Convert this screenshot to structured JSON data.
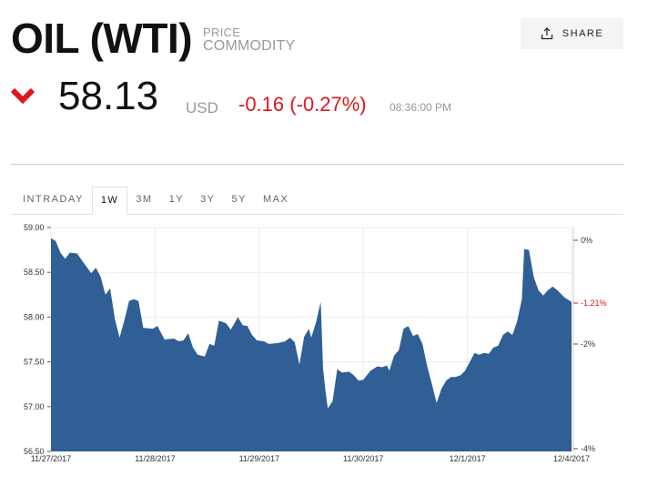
{
  "header": {
    "title": "OIL (WTI)",
    "meta_line1": "PRICE",
    "meta_line2": "COMMODITY",
    "share_label": "SHARE",
    "share_icon": "share-icon"
  },
  "quote": {
    "direction_icon": "chevron-down-icon",
    "price": "58.13",
    "currency": "USD",
    "change": "-0.16 (-0.27%)",
    "time": "08:36:00 PM",
    "down_color": "#e0161b"
  },
  "tabs": [
    {
      "label": "INTRADAY",
      "active": false
    },
    {
      "label": "1W",
      "active": true
    },
    {
      "label": "3M",
      "active": false
    },
    {
      "label": "1Y",
      "active": false
    },
    {
      "label": "3Y",
      "active": false
    },
    {
      "label": "5Y",
      "active": false
    },
    {
      "label": "MAX",
      "active": false
    }
  ],
  "chart_data": {
    "type": "area",
    "color": "#2f5f94",
    "ylim": [
      56.5,
      59.0
    ],
    "y_ticks": [
      "59.00",
      "58.50",
      "58.00",
      "57.50",
      "57.00",
      "56.50"
    ],
    "x_ticks": [
      "11/27/2017",
      "11/28/2017",
      "11/29/2017",
      "11/30/2017",
      "12/1/2017",
      "12/4/2017"
    ],
    "right_ticks": [
      "0%",
      "-2%",
      "-4%"
    ],
    "current_marker": "-1.21%",
    "grid": true,
    "series": [
      {
        "values": [
          [
            0.0,
            58.88
          ],
          [
            0.01,
            58.85
          ],
          [
            0.02,
            58.72
          ],
          [
            0.03,
            58.65
          ],
          [
            0.04,
            58.72
          ],
          [
            0.055,
            58.71
          ],
          [
            0.07,
            58.6
          ],
          [
            0.085,
            58.49
          ],
          [
            0.095,
            58.55
          ],
          [
            0.105,
            58.45
          ],
          [
            0.115,
            58.25
          ],
          [
            0.125,
            58.32
          ],
          [
            0.135,
            57.98
          ],
          [
            0.145,
            57.77
          ],
          [
            0.155,
            57.96
          ],
          [
            0.165,
            58.18
          ],
          [
            0.175,
            58.2
          ],
          [
            0.185,
            58.18
          ],
          [
            0.195,
            57.88
          ],
          [
            0.215,
            57.87
          ],
          [
            0.225,
            57.9
          ],
          [
            0.24,
            57.75
          ],
          [
            0.26,
            57.76
          ],
          [
            0.27,
            57.73
          ],
          [
            0.28,
            57.74
          ],
          [
            0.29,
            57.82
          ],
          [
            0.3,
            57.66
          ],
          [
            0.31,
            57.58
          ],
          [
            0.325,
            57.56
          ],
          [
            0.335,
            57.7
          ],
          [
            0.345,
            57.68
          ],
          [
            0.355,
            57.96
          ],
          [
            0.37,
            57.93
          ],
          [
            0.38,
            57.86
          ],
          [
            0.395,
            58.0
          ],
          [
            0.405,
            57.91
          ],
          [
            0.415,
            57.9
          ],
          [
            0.425,
            57.8
          ],
          [
            0.435,
            57.74
          ],
          [
            0.45,
            57.73
          ],
          [
            0.46,
            57.7
          ],
          [
            0.48,
            57.71
          ],
          [
            0.495,
            57.73
          ],
          [
            0.505,
            57.77
          ],
          [
            0.515,
            57.72
          ],
          [
            0.525,
            57.47
          ],
          [
            0.535,
            57.78
          ],
          [
            0.545,
            57.87
          ],
          [
            0.55,
            57.77
          ],
          [
            0.56,
            57.94
          ],
          [
            0.57,
            58.17
          ],
          [
            0.575,
            57.42
          ],
          [
            0.58,
            57.18
          ],
          [
            0.585,
            56.98
          ],
          [
            0.595,
            57.06
          ],
          [
            0.605,
            57.42
          ],
          [
            0.615,
            57.38
          ],
          [
            0.63,
            57.39
          ],
          [
            0.64,
            57.35
          ],
          [
            0.65,
            57.29
          ],
          [
            0.66,
            57.3
          ],
          [
            0.675,
            57.4
          ],
          [
            0.69,
            57.45
          ],
          [
            0.7,
            57.44
          ],
          [
            0.71,
            57.46
          ],
          [
            0.715,
            57.4
          ],
          [
            0.725,
            57.57
          ],
          [
            0.735,
            57.63
          ],
          [
            0.745,
            57.87
          ],
          [
            0.755,
            57.9
          ],
          [
            0.765,
            57.79
          ],
          [
            0.775,
            57.81
          ],
          [
            0.785,
            57.7
          ],
          [
            0.795,
            57.45
          ],
          [
            0.805,
            57.25
          ],
          [
            0.815,
            57.04
          ],
          [
            0.825,
            57.2
          ],
          [
            0.835,
            57.29
          ],
          [
            0.845,
            57.33
          ],
          [
            0.855,
            57.33
          ],
          [
            0.865,
            57.35
          ],
          [
            0.875,
            57.4
          ],
          [
            0.885,
            57.5
          ],
          [
            0.895,
            57.6
          ],
          [
            0.905,
            57.58
          ],
          [
            0.915,
            57.6
          ],
          [
            0.925,
            57.59
          ],
          [
            0.935,
            57.66
          ],
          [
            0.945,
            57.68
          ],
          [
            0.955,
            57.8
          ],
          [
            0.965,
            57.84
          ],
          [
            0.975,
            57.8
          ],
          [
            0.985,
            57.95
          ],
          [
            0.995,
            58.2
          ],
          [
            1.0,
            58.76
          ],
          [
            1.01,
            58.75
          ],
          [
            1.02,
            58.45
          ],
          [
            1.03,
            58.3
          ],
          [
            1.04,
            58.24
          ],
          [
            1.05,
            58.3
          ],
          [
            1.06,
            58.34
          ],
          [
            1.07,
            58.3
          ],
          [
            1.085,
            58.22
          ],
          [
            1.1,
            58.17
          ]
        ]
      }
    ]
  }
}
